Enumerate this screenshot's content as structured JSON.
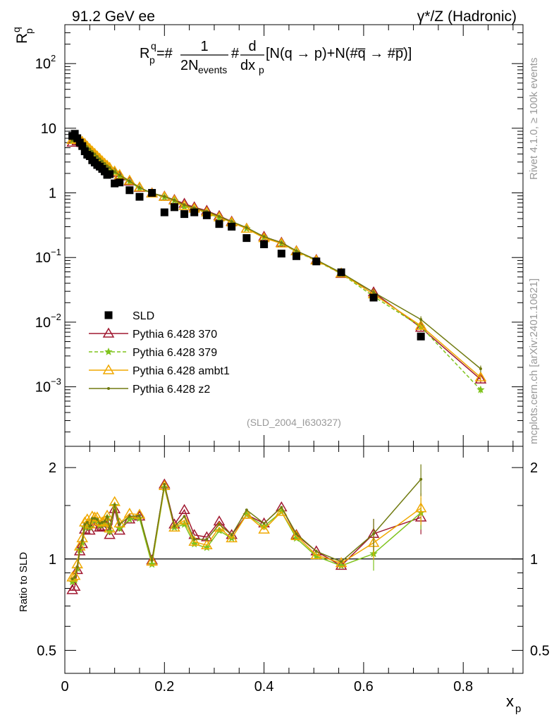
{
  "header": {
    "left": "91.2 GeV ee",
    "right": "γ*/Z (Hadronic)"
  },
  "side_labels": {
    "rivet": "Rivet 4.1.0, ≥ 100k events",
    "mcplots": "mcplots.cern.ch [arXiv:2401.10621]"
  },
  "formula": {
    "lhs": "R",
    "lhs_sub": "p",
    "lhs_sup": "q",
    "eq": "=#",
    "frac1_num": "1",
    "frac1_den": "2N",
    "frac1_den_sub": "events",
    "hash": "#",
    "frac2_num": "d",
    "frac2_den": "dx",
    "frac2_den_sub": "p",
    "rhs": "[N(q →  p)+N(#q̅ →  #p̅)]"
  },
  "watermark": "(SLD_2004_I630327)",
  "colors": {
    "data": "#000000",
    "p370": "#a01830",
    "p379": "#7fc31c",
    "ambt1": "#f0a800",
    "z2": "#707a10"
  },
  "chart_data": [
    {
      "type": "line",
      "title": "",
      "xlabel": "x",
      "xlabel_sub": "p",
      "ylabel": "R",
      "ylabel_sub": "p",
      "ylabel_sup": "q",
      "xlim": [
        0,
        0.92
      ],
      "ylim": [
        0.00012,
        400
      ],
      "yscale": "log",
      "x_ticks": [
        0,
        0.2,
        0.4,
        0.6,
        0.8
      ],
      "x_tick_labels": [
        "0",
        "0.2",
        "0.4",
        "0.6",
        "0.8"
      ],
      "y_ticks": [
        0.001,
        0.01,
        0.1,
        1,
        10,
        100
      ],
      "y_tick_labels": [
        {
          "base": "10",
          "exp": "−3"
        },
        {
          "base": "10",
          "exp": "−2"
        },
        {
          "base": "10",
          "exp": "−1"
        },
        {
          "base": "1",
          "exp": ""
        },
        {
          "base": "10",
          "exp": ""
        },
        {
          "base": "10",
          "exp": "2"
        }
      ],
      "legend_position": "bottom-left",
      "x": [
        0.015,
        0.02,
        0.025,
        0.03,
        0.035,
        0.04,
        0.045,
        0.05,
        0.055,
        0.06,
        0.065,
        0.07,
        0.075,
        0.08,
        0.085,
        0.09,
        0.1,
        0.11,
        0.13,
        0.15,
        0.175,
        0.2,
        0.22,
        0.24,
        0.26,
        0.285,
        0.31,
        0.335,
        0.365,
        0.4,
        0.435,
        0.465,
        0.505,
        0.555,
        0.62,
        0.715,
        0.835
      ],
      "data": {
        "name": "SLD",
        "values": [
          7.6,
          8.2,
          7.0,
          6.0,
          5.3,
          4.4,
          3.9,
          3.7,
          3.2,
          2.95,
          2.7,
          2.55,
          2.35,
          2.15,
          1.9,
          1.95,
          1.4,
          1.45,
          1.1,
          0.87,
          1.0,
          0.5,
          0.6,
          0.47,
          0.5,
          0.45,
          0.33,
          0.3,
          0.2,
          0.16,
          0.115,
          0.105,
          0.087,
          0.059,
          0.024,
          0.006,
          null
        ]
      },
      "series": [
        {
          "name": "Pythia 6.428 370",
          "key": "p370",
          "marker": "triangle-open",
          "values": [
            6.0,
            6.8,
            6.3,
            6.3,
            5.9,
            5.5,
            5.0,
            4.6,
            4.2,
            3.9,
            3.55,
            3.25,
            3.0,
            2.75,
            2.55,
            2.35,
            2.05,
            1.8,
            1.5,
            1.2,
            0.99,
            0.88,
            0.78,
            0.68,
            0.6,
            0.53,
            0.44,
            0.36,
            0.28,
            0.21,
            0.17,
            0.126,
            0.092,
            0.056,
            0.029,
            0.0082,
            0.0013
          ]
        },
        {
          "name": "Pythia 6.428 379",
          "key": "p379",
          "marker": "star",
          "dashed": true,
          "values": [
            6.4,
            7.0,
            6.5,
            6.4,
            6.0,
            5.6,
            5.1,
            4.7,
            4.3,
            3.95,
            3.6,
            3.3,
            3.05,
            2.8,
            2.6,
            2.4,
            2.1,
            1.82,
            1.48,
            1.18,
            0.96,
            0.86,
            0.76,
            0.61,
            0.56,
            0.49,
            0.41,
            0.35,
            0.28,
            0.205,
            0.165,
            0.123,
            0.089,
            0.056,
            0.025,
            0.0085,
            0.0009
          ]
        },
        {
          "name": "Pythia 6.428 ambt1",
          "key": "ambt1",
          "marker": "triangle-open",
          "values": [
            6.6,
            7.2,
            6.7,
            6.6,
            6.2,
            5.8,
            5.25,
            4.8,
            4.4,
            4.05,
            3.7,
            3.4,
            3.1,
            2.85,
            2.65,
            2.45,
            2.15,
            1.9,
            1.55,
            1.22,
            0.98,
            0.87,
            0.76,
            0.63,
            0.57,
            0.5,
            0.42,
            0.35,
            0.28,
            0.2,
            0.165,
            0.125,
            0.09,
            0.057,
            0.027,
            0.0088,
            0.0014
          ]
        },
        {
          "name": "Pythia 6.428 z2",
          "key": "z2",
          "marker": "dot",
          "values": [
            6.5,
            7.1,
            6.6,
            6.5,
            6.1,
            5.7,
            5.15,
            4.75,
            4.35,
            4.0,
            3.65,
            3.35,
            3.1,
            2.85,
            2.62,
            2.45,
            2.12,
            1.88,
            1.52,
            1.21,
            0.99,
            0.88,
            0.77,
            0.65,
            0.58,
            0.52,
            0.43,
            0.36,
            0.29,
            0.21,
            0.17,
            0.127,
            0.092,
            0.058,
            0.029,
            0.011,
            0.0019
          ]
        }
      ]
    },
    {
      "type": "line",
      "title": "",
      "ylabel": "Ratio to SLD",
      "xlim": [
        0,
        0.92
      ],
      "ylim": [
        0.42,
        2.35
      ],
      "yscale": "log",
      "y_ticks": [
        0.5,
        1,
        2
      ],
      "y_tick_labels": [
        "0.5",
        "1",
        "2"
      ],
      "x": [
        0.015,
        0.02,
        0.025,
        0.03,
        0.035,
        0.04,
        0.045,
        0.05,
        0.055,
        0.06,
        0.065,
        0.07,
        0.075,
        0.08,
        0.085,
        0.09,
        0.1,
        0.11,
        0.13,
        0.15,
        0.175,
        0.2,
        0.22,
        0.24,
        0.26,
        0.285,
        0.31,
        0.335,
        0.365,
        0.4,
        0.435,
        0.465,
        0.505,
        0.555,
        0.62,
        0.715
      ],
      "reference": 1,
      "series": [
        {
          "name": "Pythia 6.428 370",
          "key": "p370",
          "values": [
            0.79,
            0.81,
            0.92,
            1.06,
            1.12,
            1.25,
            1.3,
            1.24,
            1.3,
            1.33,
            1.3,
            1.27,
            1.28,
            1.28,
            1.34,
            1.2,
            1.46,
            1.24,
            1.35,
            1.38,
            0.99,
            1.76,
            1.3,
            1.45,
            1.2,
            1.18,
            1.33,
            1.2,
            1.4,
            1.31,
            1.48,
            1.2,
            1.06,
            0.95,
            1.21,
            1.37
          ]
        },
        {
          "name": "Pythia 6.428 379",
          "key": "p379",
          "values": [
            0.84,
            0.85,
            0.93,
            1.07,
            1.13,
            1.27,
            1.31,
            1.27,
            1.34,
            1.34,
            1.33,
            1.29,
            1.3,
            1.3,
            1.37,
            1.23,
            1.5,
            1.26,
            1.35,
            1.36,
            0.96,
            1.72,
            1.27,
            1.3,
            1.12,
            1.09,
            1.24,
            1.17,
            1.4,
            1.28,
            1.43,
            1.17,
            1.02,
            0.95,
            1.04,
            1.42
          ]
        },
        {
          "name": "Pythia 6.428 ambt1",
          "key": "ambt1",
          "values": [
            0.87,
            0.88,
            0.96,
            1.1,
            1.17,
            1.32,
            1.35,
            1.3,
            1.38,
            1.37,
            1.37,
            1.33,
            1.32,
            1.33,
            1.39,
            1.26,
            1.54,
            1.31,
            1.41,
            1.4,
            0.98,
            1.74,
            1.27,
            1.34,
            1.14,
            1.11,
            1.27,
            1.17,
            1.4,
            1.25,
            1.43,
            1.19,
            1.03,
            0.97,
            1.13,
            1.47
          ]
        },
        {
          "name": "Pythia 6.428 z2",
          "key": "z2",
          "values": [
            0.86,
            0.87,
            0.94,
            1.08,
            1.15,
            1.3,
            1.32,
            1.28,
            1.36,
            1.36,
            1.35,
            1.31,
            1.32,
            1.33,
            1.38,
            1.26,
            1.51,
            1.3,
            1.38,
            1.39,
            0.99,
            1.76,
            1.28,
            1.38,
            1.16,
            1.16,
            1.3,
            1.2,
            1.45,
            1.31,
            1.48,
            1.21,
            1.06,
            0.98,
            1.21,
            1.83
          ]
        }
      ]
    }
  ],
  "legend": [
    {
      "label": "SLD",
      "key": "data",
      "marker": "square"
    },
    {
      "label": "Pythia 6.428 370",
      "key": "p370",
      "marker": "triangle-open"
    },
    {
      "label": "Pythia 6.428 379",
      "key": "p379",
      "marker": "star"
    },
    {
      "label": "Pythia 6.428 ambt1",
      "key": "ambt1",
      "marker": "triangle-open"
    },
    {
      "label": "Pythia 6.428 z2",
      "key": "z2",
      "marker": "dot"
    }
  ]
}
